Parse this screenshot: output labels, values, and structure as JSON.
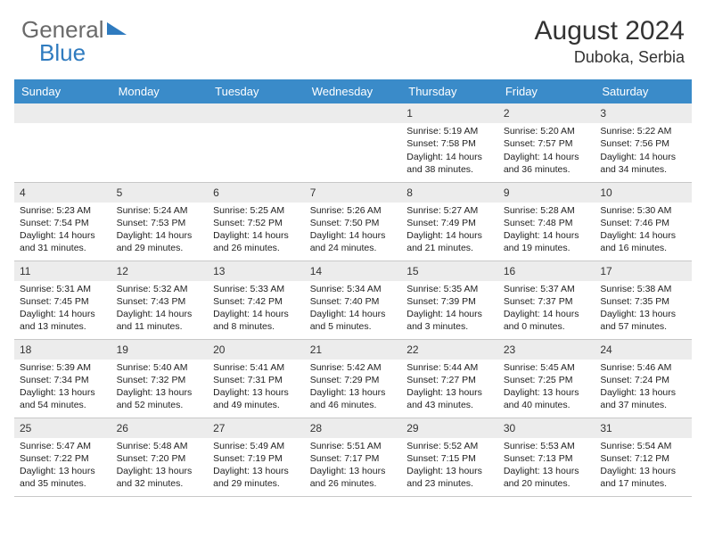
{
  "logo": {
    "part1": "General",
    "part2": "Blue"
  },
  "header": {
    "title": "August 2024",
    "location": "Duboka, Serbia"
  },
  "colors": {
    "header_bg": "#3a8bc9",
    "header_fg": "#ffffff",
    "daynum_bg": "#ececec",
    "logo_blue": "#2f7bbf",
    "logo_gray": "#6a6a6a",
    "cell_border": "#c8c8c8"
  },
  "weekdays": [
    "Sunday",
    "Monday",
    "Tuesday",
    "Wednesday",
    "Thursday",
    "Friday",
    "Saturday"
  ],
  "weeks": [
    [
      null,
      null,
      null,
      null,
      {
        "n": "1",
        "sunrise": "Sunrise: 5:19 AM",
        "sunset": "Sunset: 7:58 PM",
        "day": "Daylight: 14 hours and 38 minutes."
      },
      {
        "n": "2",
        "sunrise": "Sunrise: 5:20 AM",
        "sunset": "Sunset: 7:57 PM",
        "day": "Daylight: 14 hours and 36 minutes."
      },
      {
        "n": "3",
        "sunrise": "Sunrise: 5:22 AM",
        "sunset": "Sunset: 7:56 PM",
        "day": "Daylight: 14 hours and 34 minutes."
      }
    ],
    [
      {
        "n": "4",
        "sunrise": "Sunrise: 5:23 AM",
        "sunset": "Sunset: 7:54 PM",
        "day": "Daylight: 14 hours and 31 minutes."
      },
      {
        "n": "5",
        "sunrise": "Sunrise: 5:24 AM",
        "sunset": "Sunset: 7:53 PM",
        "day": "Daylight: 14 hours and 29 minutes."
      },
      {
        "n": "6",
        "sunrise": "Sunrise: 5:25 AM",
        "sunset": "Sunset: 7:52 PM",
        "day": "Daylight: 14 hours and 26 minutes."
      },
      {
        "n": "7",
        "sunrise": "Sunrise: 5:26 AM",
        "sunset": "Sunset: 7:50 PM",
        "day": "Daylight: 14 hours and 24 minutes."
      },
      {
        "n": "8",
        "sunrise": "Sunrise: 5:27 AM",
        "sunset": "Sunset: 7:49 PM",
        "day": "Daylight: 14 hours and 21 minutes."
      },
      {
        "n": "9",
        "sunrise": "Sunrise: 5:28 AM",
        "sunset": "Sunset: 7:48 PM",
        "day": "Daylight: 14 hours and 19 minutes."
      },
      {
        "n": "10",
        "sunrise": "Sunrise: 5:30 AM",
        "sunset": "Sunset: 7:46 PM",
        "day": "Daylight: 14 hours and 16 minutes."
      }
    ],
    [
      {
        "n": "11",
        "sunrise": "Sunrise: 5:31 AM",
        "sunset": "Sunset: 7:45 PM",
        "day": "Daylight: 14 hours and 13 minutes."
      },
      {
        "n": "12",
        "sunrise": "Sunrise: 5:32 AM",
        "sunset": "Sunset: 7:43 PM",
        "day": "Daylight: 14 hours and 11 minutes."
      },
      {
        "n": "13",
        "sunrise": "Sunrise: 5:33 AM",
        "sunset": "Sunset: 7:42 PM",
        "day": "Daylight: 14 hours and 8 minutes."
      },
      {
        "n": "14",
        "sunrise": "Sunrise: 5:34 AM",
        "sunset": "Sunset: 7:40 PM",
        "day": "Daylight: 14 hours and 5 minutes."
      },
      {
        "n": "15",
        "sunrise": "Sunrise: 5:35 AM",
        "sunset": "Sunset: 7:39 PM",
        "day": "Daylight: 14 hours and 3 minutes."
      },
      {
        "n": "16",
        "sunrise": "Sunrise: 5:37 AM",
        "sunset": "Sunset: 7:37 PM",
        "day": "Daylight: 14 hours and 0 minutes."
      },
      {
        "n": "17",
        "sunrise": "Sunrise: 5:38 AM",
        "sunset": "Sunset: 7:35 PM",
        "day": "Daylight: 13 hours and 57 minutes."
      }
    ],
    [
      {
        "n": "18",
        "sunrise": "Sunrise: 5:39 AM",
        "sunset": "Sunset: 7:34 PM",
        "day": "Daylight: 13 hours and 54 minutes."
      },
      {
        "n": "19",
        "sunrise": "Sunrise: 5:40 AM",
        "sunset": "Sunset: 7:32 PM",
        "day": "Daylight: 13 hours and 52 minutes."
      },
      {
        "n": "20",
        "sunrise": "Sunrise: 5:41 AM",
        "sunset": "Sunset: 7:31 PM",
        "day": "Daylight: 13 hours and 49 minutes."
      },
      {
        "n": "21",
        "sunrise": "Sunrise: 5:42 AM",
        "sunset": "Sunset: 7:29 PM",
        "day": "Daylight: 13 hours and 46 minutes."
      },
      {
        "n": "22",
        "sunrise": "Sunrise: 5:44 AM",
        "sunset": "Sunset: 7:27 PM",
        "day": "Daylight: 13 hours and 43 minutes."
      },
      {
        "n": "23",
        "sunrise": "Sunrise: 5:45 AM",
        "sunset": "Sunset: 7:25 PM",
        "day": "Daylight: 13 hours and 40 minutes."
      },
      {
        "n": "24",
        "sunrise": "Sunrise: 5:46 AM",
        "sunset": "Sunset: 7:24 PM",
        "day": "Daylight: 13 hours and 37 minutes."
      }
    ],
    [
      {
        "n": "25",
        "sunrise": "Sunrise: 5:47 AM",
        "sunset": "Sunset: 7:22 PM",
        "day": "Daylight: 13 hours and 35 minutes."
      },
      {
        "n": "26",
        "sunrise": "Sunrise: 5:48 AM",
        "sunset": "Sunset: 7:20 PM",
        "day": "Daylight: 13 hours and 32 minutes."
      },
      {
        "n": "27",
        "sunrise": "Sunrise: 5:49 AM",
        "sunset": "Sunset: 7:19 PM",
        "day": "Daylight: 13 hours and 29 minutes."
      },
      {
        "n": "28",
        "sunrise": "Sunrise: 5:51 AM",
        "sunset": "Sunset: 7:17 PM",
        "day": "Daylight: 13 hours and 26 minutes."
      },
      {
        "n": "29",
        "sunrise": "Sunrise: 5:52 AM",
        "sunset": "Sunset: 7:15 PM",
        "day": "Daylight: 13 hours and 23 minutes."
      },
      {
        "n": "30",
        "sunrise": "Sunrise: 5:53 AM",
        "sunset": "Sunset: 7:13 PM",
        "day": "Daylight: 13 hours and 20 minutes."
      },
      {
        "n": "31",
        "sunrise": "Sunrise: 5:54 AM",
        "sunset": "Sunset: 7:12 PM",
        "day": "Daylight: 13 hours and 17 minutes."
      }
    ]
  ]
}
